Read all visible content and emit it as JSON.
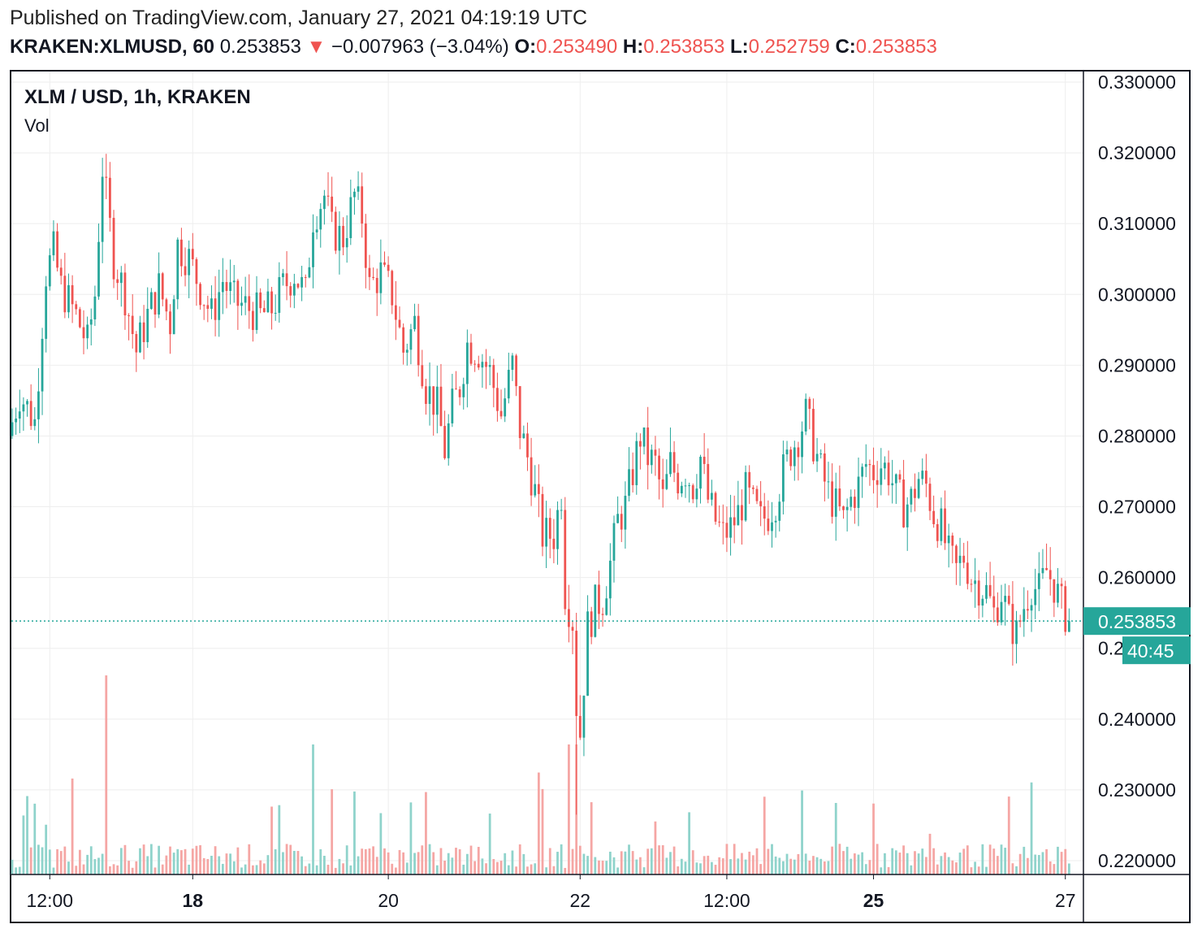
{
  "header": {
    "published": "Published on TradingView.com, January 27, 2021 04:19:19 UTC",
    "symbol": "KRAKEN:XLMUSD, 60",
    "last": "0.253853",
    "change_arrow": "▼",
    "change": "−0.007963 (−3.04%)",
    "o_label": "O:",
    "o_value": "0.253490",
    "h_label": "H:",
    "h_value": "0.253853",
    "l_label": "L:",
    "l_value": "0.252759",
    "c_label": "C:",
    "c_value": "0.253853"
  },
  "legend": {
    "title": "XLM / USD, 1h, KRAKEN",
    "vol": "Vol"
  },
  "colors": {
    "up": "#26a69a",
    "down": "#ef5350",
    "up_vol": "#8fd3cb",
    "down_vol": "#f5a6a4",
    "grid": "#eeeeee"
  },
  "chart_data": {
    "type": "candlestick",
    "title": "XLM / USD, 1h, KRAKEN",
    "y_range": [
      0.218,
      0.331
    ],
    "y_ticks": [
      "0.330000",
      "0.320000",
      "0.310000",
      "0.300000",
      "0.290000",
      "0.280000",
      "0.270000",
      "0.260000",
      "0.250000",
      "0.240000",
      "0.230000",
      "0.220000"
    ],
    "x_ticks": [
      {
        "label": "12:00",
        "bold": false,
        "bar": 10
      },
      {
        "label": "18",
        "bold": true,
        "bar": 48
      },
      {
        "label": "20",
        "bold": false,
        "bar": 100
      },
      {
        "label": "22",
        "bold": false,
        "bar": 151
      },
      {
        "label": "12:00",
        "bold": false,
        "bar": 190
      },
      {
        "label": "25",
        "bold": true,
        "bar": 229
      },
      {
        "label": "27",
        "bold": false,
        "bar": 280
      }
    ],
    "bar_count": 282,
    "last_price": {
      "value": 0.253853,
      "label": "0.253853",
      "countdown": "40:45"
    },
    "anchors": [
      [
        0,
        0.28
      ],
      [
        3,
        0.286
      ],
      [
        7,
        0.282
      ],
      [
        10,
        0.303
      ],
      [
        12,
        0.306
      ],
      [
        14,
        0.301
      ],
      [
        18,
        0.297
      ],
      [
        21,
        0.293
      ],
      [
        23,
        0.3
      ],
      [
        25,
        0.318
      ],
      [
        28,
        0.305
      ],
      [
        31,
        0.3
      ],
      [
        34,
        0.292
      ],
      [
        37,
        0.297
      ],
      [
        40,
        0.301
      ],
      [
        43,
        0.296
      ],
      [
        45,
        0.307
      ],
      [
        48,
        0.305
      ],
      [
        51,
        0.301
      ],
      [
        54,
        0.297
      ],
      [
        57,
        0.302
      ],
      [
        60,
        0.299
      ],
      [
        64,
        0.298
      ],
      [
        67,
        0.297
      ],
      [
        70,
        0.298
      ],
      [
        73,
        0.301
      ],
      [
        76,
        0.303
      ],
      [
        79,
        0.3
      ],
      [
        81,
        0.311
      ],
      [
        84,
        0.314
      ],
      [
        86,
        0.309
      ],
      [
        89,
        0.308
      ],
      [
        92,
        0.314
      ],
      [
        94,
        0.311
      ],
      [
        96,
        0.301
      ],
      [
        99,
        0.303
      ],
      [
        102,
        0.3
      ],
      [
        105,
        0.292
      ],
      [
        108,
        0.296
      ],
      [
        111,
        0.287
      ],
      [
        114,
        0.284
      ],
      [
        116,
        0.278
      ],
      [
        118,
        0.284
      ],
      [
        120,
        0.287
      ],
      [
        122,
        0.293
      ],
      [
        125,
        0.292
      ],
      [
        128,
        0.289
      ],
      [
        131,
        0.283
      ],
      [
        134,
        0.29
      ],
      [
        136,
        0.281
      ],
      [
        138,
        0.277
      ],
      [
        140,
        0.272
      ],
      [
        142,
        0.266
      ],
      [
        145,
        0.266
      ],
      [
        147,
        0.272
      ],
      [
        148,
        0.258
      ],
      [
        150,
        0.254
      ],
      [
        151,
        0.242
      ],
      [
        152,
        0.238
      ],
      [
        154,
        0.253
      ],
      [
        156,
        0.256
      ],
      [
        158,
        0.257
      ],
      [
        160,
        0.262
      ],
      [
        162,
        0.268
      ],
      [
        164,
        0.27
      ],
      [
        166,
        0.275
      ],
      [
        168,
        0.28
      ],
      [
        170,
        0.277
      ],
      [
        172,
        0.276
      ],
      [
        174,
        0.271
      ],
      [
        176,
        0.276
      ],
      [
        178,
        0.274
      ],
      [
        180,
        0.275
      ],
      [
        182,
        0.273
      ],
      [
        184,
        0.277
      ],
      [
        186,
        0.271
      ],
      [
        188,
        0.268
      ],
      [
        190,
        0.266
      ],
      [
        192,
        0.267
      ],
      [
        194,
        0.269
      ],
      [
        196,
        0.272
      ],
      [
        198,
        0.27
      ],
      [
        200,
        0.268
      ],
      [
        202,
        0.269
      ],
      [
        204,
        0.271
      ],
      [
        206,
        0.275
      ],
      [
        208,
        0.278
      ],
      [
        210,
        0.28
      ],
      [
        212,
        0.283
      ],
      [
        214,
        0.279
      ],
      [
        216,
        0.275
      ],
      [
        218,
        0.272
      ],
      [
        220,
        0.27
      ],
      [
        222,
        0.268
      ],
      [
        224,
        0.271
      ],
      [
        226,
        0.273
      ],
      [
        228,
        0.276
      ],
      [
        230,
        0.275
      ],
      [
        232,
        0.276
      ],
      [
        234,
        0.275
      ],
      [
        236,
        0.272
      ],
      [
        238,
        0.27
      ],
      [
        240,
        0.271
      ],
      [
        242,
        0.274
      ],
      [
        244,
        0.273
      ],
      [
        246,
        0.269
      ],
      [
        248,
        0.267
      ],
      [
        250,
        0.263
      ],
      [
        252,
        0.261
      ],
      [
        254,
        0.263
      ],
      [
        256,
        0.26
      ],
      [
        258,
        0.259
      ],
      [
        260,
        0.258
      ],
      [
        262,
        0.255
      ],
      [
        264,
        0.258
      ],
      [
        266,
        0.254
      ],
      [
        268,
        0.252
      ],
      [
        270,
        0.256
      ],
      [
        272,
        0.259
      ],
      [
        274,
        0.258
      ],
      [
        276,
        0.261
      ],
      [
        278,
        0.259
      ],
      [
        280,
        0.256
      ],
      [
        282,
        0.2538
      ]
    ]
  }
}
